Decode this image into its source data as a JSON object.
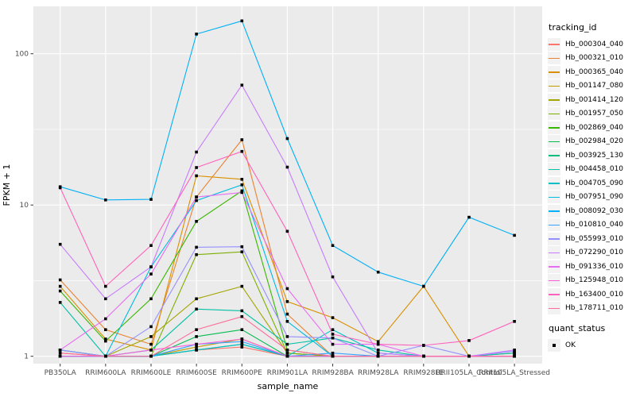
{
  "figure": {
    "background": "#FFFFFF",
    "panel_background": "#EBEBEB",
    "grid_color": "#FFFFFF",
    "tick_label_color": "#4D4D4D",
    "tick_mark_color": "#333333"
  },
  "legends": {
    "tracking": {
      "title": "tracking_id"
    },
    "quant": {
      "title": "quant_status",
      "entries": [
        {
          "label": "OK",
          "symbol": "black-square-point",
          "color": "#000000"
        }
      ]
    }
  },
  "axes": {
    "y": {
      "label": "FPKM + 1",
      "scale": "log10",
      "tick_labels": [
        "1",
        "10",
        "100"
      ],
      "tick_values": [
        1,
        10,
        100
      ]
    },
    "x": {
      "label": "sample_name"
    }
  },
  "chart_data": {
    "type": "line",
    "title": "",
    "xlabel": "sample_name",
    "ylabel": "FPKM + 1",
    "y_scale": "log10",
    "ylim": [
      1,
      200
    ],
    "grid": true,
    "legend_position": "right",
    "point_marker": {
      "shape": "square",
      "color": "#000000",
      "size": 3.6
    },
    "categories": [
      "PB350LA",
      "RRIM600LA",
      "RRIM600LE",
      "RRIM600SE",
      "RRIM600PE",
      "RRIM901LA",
      "RRIM928BA",
      "RRIM928LA",
      "RRIM928LE",
      "RRII105LA_Control",
      "RRII105LA_Stressed"
    ],
    "series": [
      {
        "name": "Hb_000304_040",
        "color": "#F8766D",
        "values": [
          1.05,
          1.0,
          1.0,
          1.1,
          1.15,
          1.0,
          1.0,
          1.0,
          1.0,
          1.0,
          1.0
        ]
      },
      {
        "name": "Hb_000321_010",
        "color": "#EA8331",
        "values": [
          3.2,
          1.5,
          1.2,
          11.3,
          27.0,
          1.9,
          1.0,
          1.0,
          1.0,
          1.0,
          1.05
        ]
      },
      {
        "name": "Hb_000365_040",
        "color": "#D89000",
        "values": [
          2.9,
          1.3,
          1.1,
          15.6,
          14.8,
          2.3,
          1.8,
          1.25,
          2.9,
          1.0,
          1.0
        ]
      },
      {
        "name": "Hb_001147_080",
        "color": "#C09B00",
        "values": [
          1.1,
          1.0,
          1.0,
          1.15,
          1.3,
          1.0,
          1.0,
          1.0,
          1.0,
          1.0,
          1.0
        ]
      },
      {
        "name": "Hb_001414_120",
        "color": "#A3A500",
        "values": [
          1.0,
          1.0,
          1.35,
          2.4,
          2.9,
          1.05,
          1.0,
          1.0,
          1.0,
          1.0,
          1.0
        ]
      },
      {
        "name": "Hb_001957_050",
        "color": "#7CAE00",
        "values": [
          1.0,
          1.0,
          1.0,
          4.7,
          4.9,
          1.05,
          1.0,
          1.0,
          1.0,
          1.0,
          1.0
        ]
      },
      {
        "name": "Hb_002869_040",
        "color": "#39B600",
        "values": [
          2.7,
          1.26,
          2.4,
          7.8,
          12.4,
          1.1,
          1.0,
          1.0,
          1.0,
          1.0,
          1.0
        ]
      },
      {
        "name": "Hb_002984_020",
        "color": "#00BB4E",
        "values": [
          1.0,
          1.0,
          1.0,
          1.35,
          1.5,
          1.0,
          1.0,
          1.0,
          1.0,
          1.0,
          1.0
        ]
      },
      {
        "name": "Hb_003925_130",
        "color": "#00BF7D",
        "values": [
          1.1,
          1.0,
          1.0,
          1.1,
          1.2,
          1.0,
          1.0,
          1.0,
          1.0,
          1.0,
          1.0
        ]
      },
      {
        "name": "Hb_004458_010",
        "color": "#00C1A3",
        "values": [
          2.27,
          1.0,
          1.1,
          2.05,
          2.0,
          1.2,
          1.32,
          1.1,
          1.0,
          1.0,
          1.05
        ]
      },
      {
        "name": "Hb_004705_090",
        "color": "#00BFC4",
        "values": [
          1.1,
          1.0,
          1.0,
          1.1,
          1.2,
          1.0,
          1.5,
          1.05,
          1.0,
          1.0,
          1.0
        ]
      },
      {
        "name": "Hb_007951_090",
        "color": "#00BAE0",
        "values": [
          1.0,
          1.0,
          3.9,
          10.7,
          13.6,
          1.7,
          1.0,
          1.0,
          1.0,
          1.0,
          1.0
        ]
      },
      {
        "name": "Hb_008092_030",
        "color": "#00B0F6",
        "values": [
          13.2,
          10.8,
          10.9,
          135.0,
          165.0,
          27.5,
          5.4,
          3.6,
          2.9,
          8.3,
          6.3
        ]
      },
      {
        "name": "Hb_010810_040",
        "color": "#35A2FF",
        "values": [
          1.0,
          1.0,
          1.0,
          1.2,
          1.25,
          1.0,
          1.05,
          1.0,
          1.0,
          1.0,
          1.0
        ]
      },
      {
        "name": "Hb_055993_010",
        "color": "#9590FF",
        "values": [
          1.1,
          1.0,
          1.57,
          5.26,
          5.3,
          1.35,
          1.32,
          1.0,
          1.18,
          1.0,
          1.08
        ]
      },
      {
        "name": "Hb_072290_010",
        "color": "#C77CFF",
        "values": [
          5.5,
          2.4,
          3.9,
          22.4,
          62.0,
          17.8,
          3.35,
          1.05,
          1.0,
          1.0,
          1.1
        ]
      },
      {
        "name": "Hb_091336_010",
        "color": "#E76BF3",
        "values": [
          1.1,
          1.77,
          3.5,
          11.3,
          12.1,
          2.8,
          1.2,
          1.2,
          1.0,
          1.0,
          1.0
        ]
      },
      {
        "name": "Hb_125948_010",
        "color": "#FA62DB",
        "values": [
          1.0,
          1.0,
          1.1,
          1.2,
          1.3,
          1.0,
          1.0,
          1.0,
          1.0,
          1.0,
          1.0
        ]
      },
      {
        "name": "Hb_163400_010",
        "color": "#FF62BC",
        "values": [
          13.0,
          2.9,
          5.4,
          17.7,
          22.6,
          6.7,
          1.4,
          1.2,
          1.18,
          1.27,
          1.7
        ]
      },
      {
        "name": "Hb_178711_010",
        "color": "#FF6A98",
        "values": [
          1.05,
          1.0,
          1.0,
          1.5,
          1.83,
          1.1,
          1.0,
          1.0,
          1.0,
          1.0,
          1.0
        ]
      }
    ]
  }
}
